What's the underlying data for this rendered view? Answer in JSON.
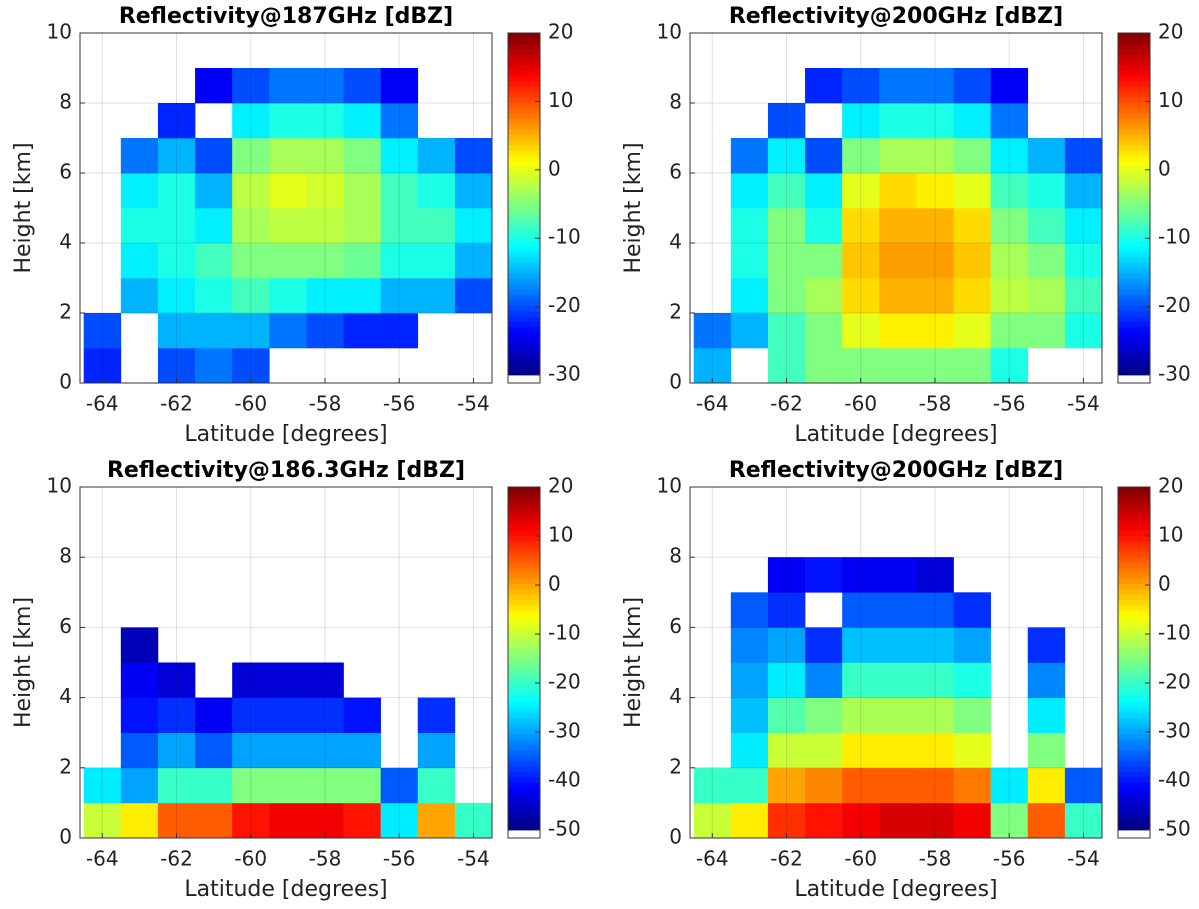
{
  "chart_data": [
    {
      "type": "heatmap",
      "title": "Reflectivity@187GHz [dBZ]",
      "xlabel": "Latitude [degrees]",
      "ylabel": "Height [km]",
      "xlim": [
        -64.6,
        -53.5
      ],
      "xticks": [
        -64,
        -62,
        -60,
        -58,
        -56,
        -54
      ],
      "ylim": [
        0,
        10
      ],
      "yticks": [
        0,
        2,
        4,
        6,
        8,
        10
      ],
      "clim": [
        -30,
        20
      ],
      "cticks": [
        -30,
        -20,
        -10,
        0,
        10,
        20
      ],
      "colormap": "jet",
      "grid": true,
      "xbins": [
        -64.5,
        -63.5,
        -62.5,
        -61.5,
        -60.5,
        -59.5,
        -58.5,
        -57.5,
        -56.5,
        -55.5,
        -54.5,
        -53.5
      ],
      "ybins": [
        0,
        1,
        2,
        3,
        4,
        5,
        6,
        7,
        8,
        9,
        10
      ],
      "z": [
        [
          -22,
          null,
          -20,
          -18,
          -20,
          null,
          null,
          null,
          null,
          null,
          null
        ],
        [
          -20,
          null,
          -15,
          -15,
          -15,
          -18,
          -20,
          -22,
          -22,
          null,
          null
        ],
        [
          null,
          -15,
          -12,
          -10,
          -8,
          -10,
          -12,
          -12,
          -15,
          -15,
          -20
        ],
        [
          null,
          -12,
          -10,
          -8,
          -5,
          -5,
          -5,
          -6,
          -10,
          -10,
          -15
        ],
        [
          null,
          -10,
          -10,
          -12,
          -3,
          -2,
          -2,
          -3,
          -8,
          -8,
          -12
        ],
        [
          null,
          -12,
          -10,
          -15,
          -2,
          0,
          -1,
          -3,
          -8,
          -10,
          -15
        ],
        [
          null,
          -18,
          -15,
          -20,
          -5,
          -3,
          -3,
          -5,
          -12,
          -15,
          -20
        ],
        [
          null,
          null,
          -22,
          null,
          -12,
          -10,
          -10,
          -12,
          -18,
          null,
          null
        ],
        [
          null,
          null,
          null,
          -24,
          -20,
          -18,
          -18,
          -20,
          -24,
          null,
          null
        ],
        [
          null,
          null,
          null,
          null,
          null,
          null,
          null,
          null,
          null,
          null,
          null
        ]
      ]
    },
    {
      "type": "heatmap",
      "title": "Reflectivity@200GHz [dBZ]",
      "xlabel": "Latitude [degrees]",
      "ylabel": "Height [km]",
      "xlim": [
        -64.6,
        -53.5
      ],
      "xticks": [
        -64,
        -62,
        -60,
        -58,
        -56,
        -54
      ],
      "ylim": [
        0,
        10
      ],
      "yticks": [
        0,
        2,
        4,
        6,
        8,
        10
      ],
      "clim": [
        -30,
        20
      ],
      "cticks": [
        -30,
        -20,
        -10,
        0,
        10,
        20
      ],
      "colormap": "jet",
      "grid": true,
      "xbins": [
        -64.5,
        -63.5,
        -62.5,
        -61.5,
        -60.5,
        -59.5,
        -58.5,
        -57.5,
        -56.5,
        -55.5,
        -54.5,
        -53.5
      ],
      "ybins": [
        0,
        1,
        2,
        3,
        4,
        5,
        6,
        7,
        8,
        9,
        10
      ],
      "z": [
        [
          -15,
          null,
          -8,
          -5,
          -5,
          -5,
          -5,
          -5,
          -10,
          null,
          null
        ],
        [
          -18,
          -15,
          -8,
          -5,
          0,
          2,
          2,
          0,
          -5,
          -5,
          -10
        ],
        [
          null,
          -12,
          -5,
          -3,
          3,
          5,
          5,
          3,
          -2,
          -3,
          -8
        ],
        [
          null,
          -10,
          -5,
          -5,
          4,
          6,
          6,
          4,
          -3,
          -5,
          -10
        ],
        [
          null,
          -10,
          -5,
          -10,
          3,
          5,
          5,
          3,
          -5,
          -8,
          -12
        ],
        [
          null,
          -12,
          -8,
          -12,
          0,
          3,
          2,
          0,
          -8,
          -10,
          -15
        ],
        [
          null,
          -18,
          -12,
          -20,
          -5,
          -3,
          -3,
          -5,
          -12,
          -15,
          -20
        ],
        [
          null,
          null,
          -20,
          null,
          -12,
          -10,
          -10,
          -12,
          -18,
          null,
          null
        ],
        [
          null,
          null,
          null,
          -22,
          -20,
          -18,
          -18,
          -20,
          -24,
          null,
          null
        ],
        [
          null,
          null,
          null,
          null,
          null,
          null,
          null,
          null,
          null,
          null,
          null
        ]
      ]
    },
    {
      "type": "heatmap",
      "title": "Reflectivity@186.3GHz [dBZ]",
      "xlabel": "Latitude [degrees]",
      "ylabel": "Height [km]",
      "xlim": [
        -64.6,
        -53.5
      ],
      "xticks": [
        -64,
        -62,
        -60,
        -58,
        -56,
        -54
      ],
      "ylim": [
        0,
        10
      ],
      "yticks": [
        0,
        2,
        4,
        6,
        8,
        10
      ],
      "clim": [
        -50,
        20
      ],
      "cticks": [
        -50,
        -40,
        -30,
        -20,
        -10,
        0,
        10,
        20
      ],
      "colormap": "jet",
      "grid": true,
      "xbins": [
        -64.5,
        -63.5,
        -62.5,
        -61.5,
        -60.5,
        -59.5,
        -58.5,
        -57.5,
        -56.5,
        -55.5,
        -54.5,
        -53.5
      ],
      "ybins": [
        0,
        1,
        2,
        3,
        4,
        5,
        6,
        7,
        8,
        9,
        10
      ],
      "z": [
        [
          -10,
          -5,
          5,
          5,
          10,
          12,
          12,
          10,
          -25,
          0,
          -20
        ],
        [
          -25,
          -30,
          -20,
          -20,
          -15,
          -15,
          -15,
          -15,
          -35,
          -20,
          null
        ],
        [
          null,
          -35,
          -30,
          -35,
          -30,
          -30,
          -30,
          -30,
          null,
          -30,
          null
        ],
        [
          null,
          -40,
          -38,
          -42,
          -38,
          -38,
          -38,
          -40,
          null,
          -38,
          null
        ],
        [
          null,
          -42,
          -44,
          null,
          -44,
          -44,
          -44,
          null,
          null,
          null,
          null
        ],
        [
          null,
          -46,
          null,
          null,
          null,
          null,
          null,
          null,
          null,
          null,
          null
        ],
        [
          null,
          null,
          null,
          null,
          null,
          null,
          null,
          null,
          null,
          null,
          null
        ],
        [
          null,
          null,
          null,
          null,
          null,
          null,
          null,
          null,
          null,
          null,
          null
        ],
        [
          null,
          null,
          null,
          null,
          null,
          null,
          null,
          null,
          null,
          null,
          null
        ],
        [
          null,
          null,
          null,
          null,
          null,
          null,
          null,
          null,
          null,
          null,
          null
        ]
      ]
    },
    {
      "type": "heatmap",
      "title": "Reflectivity@200GHz [dBZ]",
      "xlabel": "Latitude [degrees]",
      "ylabel": "Height [km]",
      "xlim": [
        -64.6,
        -53.5
      ],
      "xticks": [
        -64,
        -62,
        -60,
        -58,
        -56,
        -54
      ],
      "ylim": [
        0,
        10
      ],
      "yticks": [
        0,
        2,
        4,
        6,
        8,
        10
      ],
      "clim": [
        -50,
        20
      ],
      "cticks": [
        -50,
        -40,
        -30,
        -20,
        -10,
        0,
        10,
        20
      ],
      "colormap": "jet",
      "grid": true,
      "xbins": [
        -64.5,
        -63.5,
        -62.5,
        -61.5,
        -60.5,
        -59.5,
        -58.5,
        -57.5,
        -56.5,
        -55.5,
        -54.5,
        -53.5
      ],
      "ybins": [
        0,
        1,
        2,
        3,
        4,
        5,
        6,
        7,
        8,
        9,
        10
      ],
      "z": [
        [
          -10,
          -5,
          8,
          10,
          12,
          14,
          14,
          12,
          -15,
          5,
          -20
        ],
        [
          -20,
          -20,
          0,
          2,
          5,
          5,
          5,
          3,
          -25,
          -5,
          -35
        ],
        [
          null,
          -25,
          -10,
          -10,
          -5,
          -5,
          -5,
          -8,
          null,
          -15,
          null
        ],
        [
          null,
          -28,
          -18,
          -15,
          -12,
          -12,
          -12,
          -15,
          null,
          -25,
          null
        ],
        [
          null,
          -30,
          -25,
          -32,
          -20,
          -20,
          -20,
          -22,
          null,
          -32,
          null
        ],
        [
          null,
          -32,
          -30,
          -38,
          -28,
          -28,
          -28,
          -30,
          null,
          -38,
          null
        ],
        [
          null,
          -35,
          -38,
          null,
          -35,
          -35,
          -35,
          -38,
          null,
          null,
          null
        ],
        [
          null,
          null,
          -42,
          -40,
          -42,
          -42,
          -44,
          null,
          null,
          null,
          null
        ],
        [
          null,
          null,
          null,
          null,
          null,
          null,
          null,
          null,
          null,
          null,
          null
        ],
        [
          null,
          null,
          null,
          null,
          null,
          null,
          null,
          null,
          null,
          null,
          null
        ]
      ]
    }
  ]
}
